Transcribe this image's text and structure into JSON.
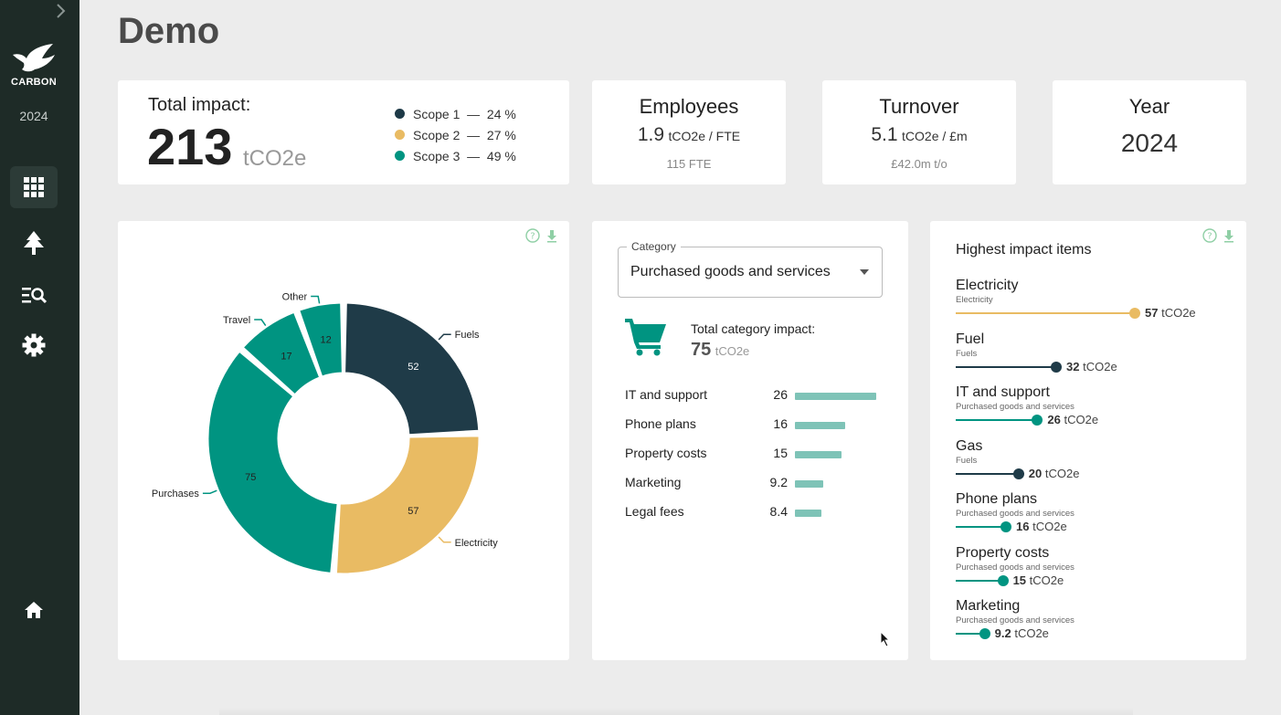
{
  "sidebar": {
    "brand": "CARBON",
    "year": "2024",
    "icons": [
      "chevron-right-icon",
      "bird-logo-icon",
      "dashboard-grid-icon",
      "tree-icon",
      "search-list-icon",
      "gear-icon",
      "home-icon"
    ]
  },
  "page": {
    "title": "Demo"
  },
  "total_impact": {
    "label": "Total impact:",
    "value": "213",
    "unit": "tCO2e",
    "scopes": [
      {
        "label": "Scope 1  —  24 %",
        "color": "#1e3a47"
      },
      {
        "label": "Scope 2  —  27 %",
        "color": "#e9bb63"
      },
      {
        "label": "Scope 3  —  49 %",
        "color": "#009481"
      }
    ]
  },
  "employees": {
    "title": "Employees",
    "value": "1.9",
    "unit": "tCO2e / FTE",
    "sub": "115 FTE"
  },
  "turnover": {
    "title": "Turnover",
    "value": "5.1",
    "unit": "tCO2e / £m",
    "sub": "£42.0m t/o"
  },
  "year": {
    "title": "Year",
    "value": "2024"
  },
  "chart_data": {
    "type": "pie",
    "variant": "donut",
    "segments": [
      {
        "label": "Fuels",
        "value": 52,
        "color": "#1f3b48"
      },
      {
        "label": "Electricity",
        "value": 57,
        "color": "#e9bb63"
      },
      {
        "label": "Purchases",
        "value": 75,
        "color": "#009481"
      },
      {
        "label": "Travel",
        "value": 17,
        "color": "#009481"
      },
      {
        "label": "Other",
        "value": 12,
        "color": "#009481"
      }
    ]
  },
  "category": {
    "select_label": "Category",
    "selected": "Purchased goods and services",
    "impact_label": "Total category impact:",
    "impact_value": "75",
    "impact_unit": "tCO2e",
    "items": [
      {
        "name": "IT and support",
        "value": "26",
        "num": 26
      },
      {
        "name": "Phone plans",
        "value": "16",
        "num": 16
      },
      {
        "name": "Property costs",
        "value": "15",
        "num": 15
      },
      {
        "name": "Marketing",
        "value": "9.2",
        "num": 9.2
      },
      {
        "name": "Legal fees",
        "value": "8.4",
        "num": 8.4
      }
    ]
  },
  "highest": {
    "title": "Highest impact items",
    "unit": "tCO2e",
    "items": [
      {
        "name": "Electricity",
        "category": "Electricity",
        "value": "57",
        "num": 57,
        "color": "#e9bb63"
      },
      {
        "name": "Fuel",
        "category": "Fuels",
        "value": "32",
        "num": 32,
        "color": "#1f3b48"
      },
      {
        "name": "IT and support",
        "category": "Purchased goods and services",
        "value": "26",
        "num": 26,
        "color": "#009481"
      },
      {
        "name": "Gas",
        "category": "Fuels",
        "value": "20",
        "num": 20,
        "color": "#1f3b48"
      },
      {
        "name": "Phone plans",
        "category": "Purchased goods and services",
        "value": "16",
        "num": 16,
        "color": "#009481"
      },
      {
        "name": "Property costs",
        "category": "Purchased goods and services",
        "value": "15",
        "num": 15,
        "color": "#009481"
      },
      {
        "name": "Marketing",
        "category": "Purchased goods and services",
        "value": "9.2",
        "num": 9.2,
        "color": "#009481"
      }
    ]
  }
}
